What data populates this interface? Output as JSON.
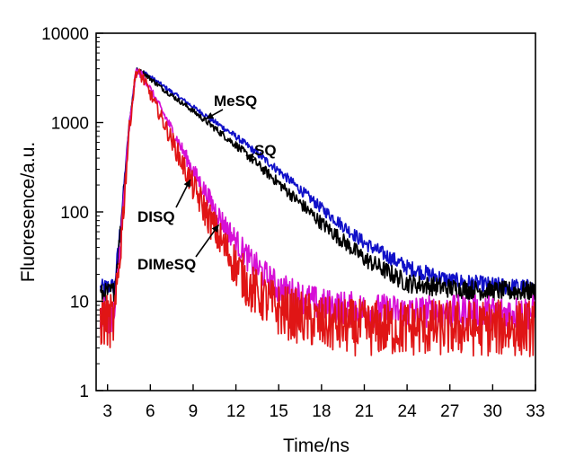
{
  "chart_data": {
    "type": "line",
    "title": "",
    "xlabel": "Time/ns",
    "ylabel": "Fluoresence/a.u.",
    "xlim": [
      2.2,
      33
    ],
    "ylim": [
      1,
      10000
    ],
    "yscale": "log",
    "grid": false,
    "legend": "none (series labelled by annotations with arrows)",
    "x_ticks": [
      3,
      6,
      9,
      12,
      15,
      18,
      21,
      24,
      27,
      30,
      33
    ],
    "x_tick_labels": [
      "3",
      "6",
      "9",
      "12",
      "15",
      "18",
      "21",
      "24",
      "27",
      "30",
      "33"
    ],
    "y_ticks": [
      1,
      10,
      100,
      1000,
      10000
    ],
    "y_tick_labels": [
      "1",
      "10",
      "100",
      "1000",
      "10000"
    ],
    "series": [
      {
        "name": "MeSQ",
        "color": "#1010c8",
        "noise": 0.07,
        "points": [
          [
            2.5,
            14
          ],
          [
            3.5,
            15
          ],
          [
            4.0,
            100
          ],
          [
            4.5,
            900
          ],
          [
            5.0,
            3900
          ],
          [
            5.5,
            3700
          ],
          [
            7,
            2500
          ],
          [
            9,
            1500
          ],
          [
            12,
            700
          ],
          [
            15,
            290
          ],
          [
            18,
            110
          ],
          [
            21,
            45
          ],
          [
            24,
            24
          ],
          [
            27,
            17
          ],
          [
            30,
            15
          ],
          [
            33,
            14
          ]
        ]
      },
      {
        "name": "SQ",
        "color": "#000000",
        "noise": 0.08,
        "points": [
          [
            2.5,
            12
          ],
          [
            3.5,
            13
          ],
          [
            4.0,
            90
          ],
          [
            4.5,
            850
          ],
          [
            5.0,
            3850
          ],
          [
            5.5,
            3600
          ],
          [
            7,
            2300
          ],
          [
            9,
            1350
          ],
          [
            12,
            560
          ],
          [
            15,
            210
          ],
          [
            18,
            75
          ],
          [
            21,
            30
          ],
          [
            24,
            16
          ],
          [
            27,
            14
          ],
          [
            30,
            13
          ],
          [
            33,
            13
          ]
        ]
      },
      {
        "name": "DIMeSQ",
        "color": "#d60fd6",
        "noise": 0.13,
        "points": [
          [
            2.5,
            7
          ],
          [
            3.5,
            7
          ],
          [
            4.0,
            70
          ],
          [
            4.5,
            800
          ],
          [
            5.0,
            3800
          ],
          [
            5.5,
            3300
          ],
          [
            7,
            1200
          ],
          [
            9,
            290
          ],
          [
            11,
            80
          ],
          [
            13,
            28
          ],
          [
            15,
            14
          ],
          [
            18,
            9
          ],
          [
            21,
            8
          ],
          [
            24,
            7.5
          ],
          [
            27,
            7.5
          ],
          [
            30,
            7.5
          ],
          [
            33,
            7.5
          ]
        ]
      },
      {
        "name": "DISQ",
        "color": "#e01515",
        "noise": 0.2,
        "points": [
          [
            2.5,
            6
          ],
          [
            3.5,
            6
          ],
          [
            4.0,
            60
          ],
          [
            4.5,
            780
          ],
          [
            5.0,
            3800
          ],
          [
            5.5,
            3100
          ],
          [
            7,
            950
          ],
          [
            9,
            190
          ],
          [
            11,
            45
          ],
          [
            13,
            14
          ],
          [
            15,
            8
          ],
          [
            18,
            5.5
          ],
          [
            21,
            5
          ],
          [
            24,
            5
          ],
          [
            27,
            5
          ],
          [
            30,
            5
          ],
          [
            33,
            5
          ]
        ]
      }
    ],
    "annotations": [
      {
        "text": "MeSQ",
        "series": "MeSQ",
        "arrow_to": [
          9.9,
          1100
        ]
      },
      {
        "text": "SQ",
        "series": "SQ",
        "arrow_to": [
          12.7,
          430
        ]
      },
      {
        "text": "DISQ",
        "series": "DISQ",
        "arrow_to": [
          8.8,
          230
        ]
      },
      {
        "text": "DIMeSQ",
        "series": "DIMeSQ",
        "arrow_to": [
          10.8,
          72
        ]
      }
    ]
  }
}
